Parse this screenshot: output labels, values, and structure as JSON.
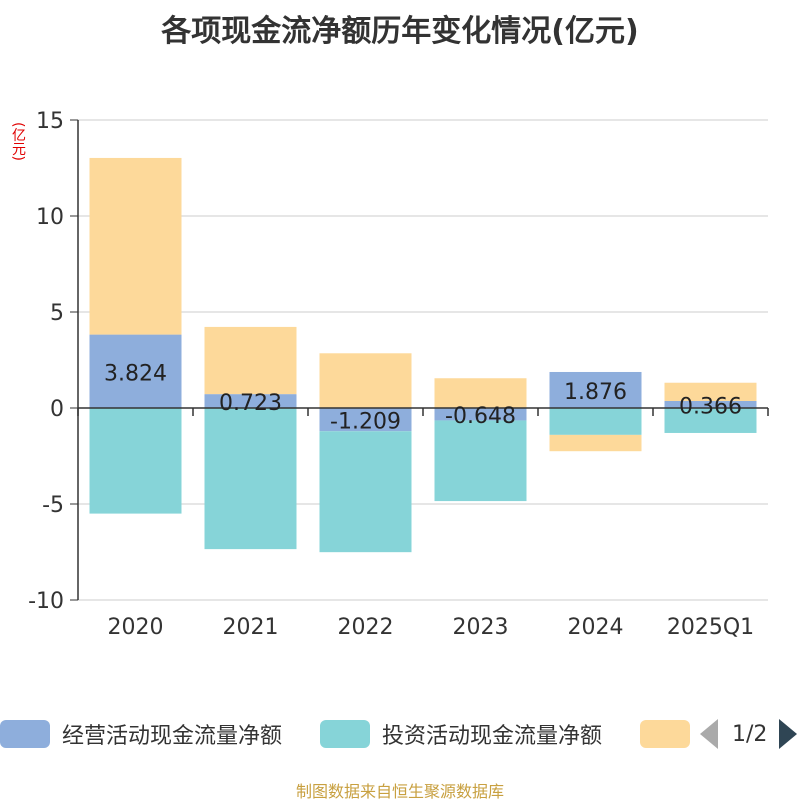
{
  "title": "各项现金流净额历年变化情况(亿元)",
  "unit": "(亿元)",
  "source": "制图数据来自恒生聚源数据库",
  "legend": {
    "items": [
      {
        "label": "经营活动现金流量净额",
        "color": "#8eaedc"
      },
      {
        "label": "投资活动现金流量净额",
        "color": "#86d4d8"
      },
      {
        "label": "",
        "color": "#fdd99a"
      }
    ],
    "page": "1/2"
  },
  "chart_data": {
    "type": "bar",
    "stacked": true,
    "title": "各项现金流净额历年变化情况(亿元)",
    "ylabel": "(亿元)",
    "ylim": [
      -10,
      15
    ],
    "yticks": [
      -10,
      -5,
      0,
      5,
      10,
      15
    ],
    "categories": [
      "2020",
      "2021",
      "2022",
      "2023",
      "2024",
      "2025Q1"
    ],
    "series": [
      {
        "name": "经营活动现金流量净额",
        "color": "#8eaedc",
        "values": [
          3.824,
          0.723,
          -1.209,
          -0.648,
          1.876,
          0.366
        ],
        "labels": [
          "3.824",
          "0.723",
          "-1.209",
          "-0.648",
          "1.876",
          "0.366"
        ]
      },
      {
        "name": "投资活动现金流量净额",
        "color": "#86d4d8",
        "values": [
          -5.5,
          -7.35,
          -6.3,
          -4.2,
          -1.4,
          -1.3
        ]
      },
      {
        "name": "",
        "color": "#fdd99a",
        "values": [
          9.2,
          3.5,
          2.85,
          1.55,
          -0.85,
          0.95
        ]
      }
    ]
  }
}
